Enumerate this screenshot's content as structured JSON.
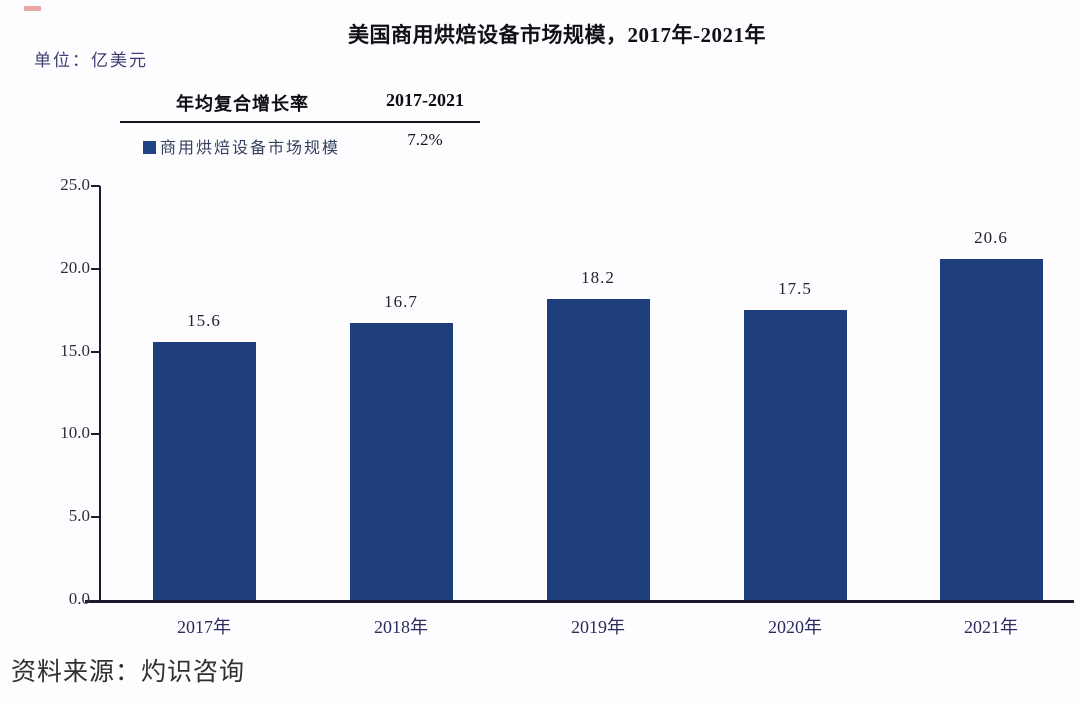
{
  "header": {
    "title": "美国商用烘焙设备市场规模，2017年-2021年",
    "unit": "单位：亿美元"
  },
  "table": {
    "header_left": "年均复合增长率",
    "header_right": "2017-2021",
    "legend_label": "商用烘焙设备市场规模",
    "value": "7.2%"
  },
  "chart_data": {
    "type": "bar",
    "title": "美国商用烘焙设备市场规模，2017年-2021年",
    "unit": "亿美元",
    "categories": [
      "2017年",
      "2018年",
      "2019年",
      "2020年",
      "2021年"
    ],
    "values": [
      15.6,
      16.7,
      18.2,
      17.5,
      20.6
    ],
    "series_name": "商用烘焙设备市场规模",
    "cagr_2017_2021": "7.2%",
    "y_ticks": [
      "25.0",
      "20.0",
      "15.0",
      "10.0",
      "5.0",
      "0.0"
    ],
    "ylim": [
      0,
      25
    ],
    "xlabel": "",
    "ylabel": "",
    "grid": false,
    "legend_position": "top-left",
    "bar_color": "#1f3e7c"
  },
  "source": "资料来源：灼识咨询",
  "colors": {
    "bar": "#1f3e7c",
    "axis": "#1b1b2f",
    "legend_swatch": "#1f4386",
    "red_mark": "#dd6e6e"
  }
}
